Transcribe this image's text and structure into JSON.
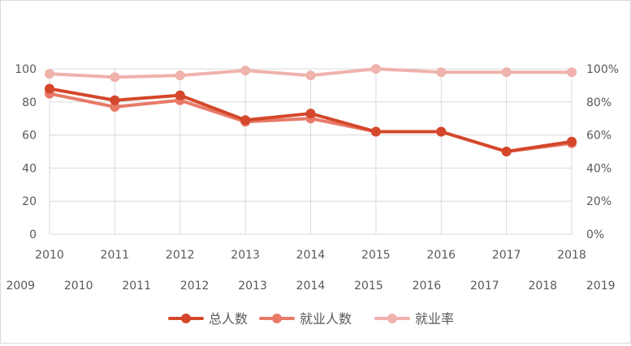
{
  "chart_data": {
    "type": "line",
    "x_primary": [
      "2010",
      "2011",
      "2012",
      "2013",
      "2014",
      "2015",
      "2016",
      "2017",
      "2018"
    ],
    "x_secondary": [
      "2009",
      "2010",
      "2011",
      "2012",
      "2013",
      "2014",
      "2015",
      "2016",
      "2017",
      "2018",
      "2019"
    ],
    "y_left": {
      "ticks": [
        "0",
        "20",
        "40",
        "60",
        "80",
        "100"
      ],
      "ylim": [
        0,
        100
      ]
    },
    "y_right": {
      "ticks": [
        "0%",
        "20%",
        "40%",
        "60%",
        "80%",
        "100%"
      ],
      "ylim": [
        0,
        100
      ]
    },
    "grid": true,
    "legend_position": "bottom",
    "series": [
      {
        "name": "总人数",
        "axis": "left",
        "color": "#d4472a",
        "x": [
          "2010",
          "2011",
          "2012",
          "2013",
          "2014",
          "2015",
          "2016",
          "2017",
          "2018"
        ],
        "values": [
          88,
          81,
          84,
          69,
          73,
          62,
          62,
          50,
          56
        ]
      },
      {
        "name": "就业人数",
        "axis": "left",
        "color": "#e87a68",
        "x": [
          "2010",
          "2011",
          "2012",
          "2013",
          "2014",
          "2015",
          "2016",
          "2017",
          "2018"
        ],
        "values": [
          85,
          77,
          81,
          68,
          70,
          62,
          62,
          50,
          55
        ]
      },
      {
        "name": "就业率",
        "axis": "right",
        "color": "#f0b2ac",
        "x": [
          "2010",
          "2011",
          "2012",
          "2013",
          "2014",
          "2015",
          "2016",
          "2017",
          "2018"
        ],
        "values": [
          97,
          95,
          96,
          99,
          96,
          100,
          98,
          98,
          98
        ]
      }
    ]
  }
}
